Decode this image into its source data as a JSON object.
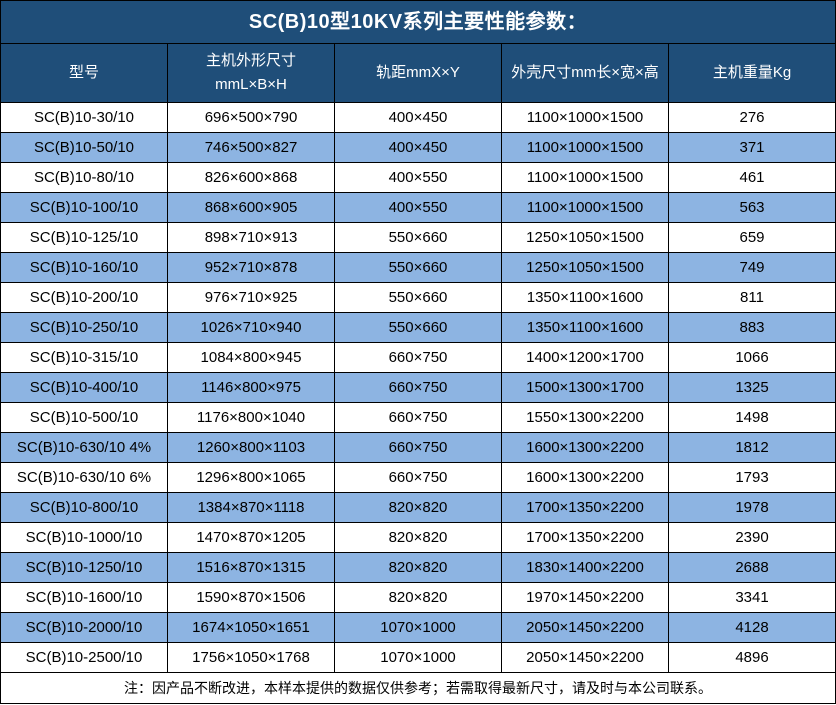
{
  "title": "SC(B)10型10KV系列主要性能参数：",
  "colors": {
    "header_bg": "#1F4E79",
    "stripe_bg": "#8DB4E2",
    "row_bg": "#FFFFFF",
    "border": "#000000",
    "header_text": "#FFFFFF",
    "body_text": "#000000"
  },
  "table": {
    "columns": [
      "型号",
      "主机外形尺寸\nmmL×B×H",
      "轨距mmX×Y",
      "外壳尺寸mm长×宽×高",
      "主机重量Kg"
    ],
    "rows": [
      [
        "SC(B)10-30/10",
        "696×500×790",
        "400×450",
        "1100×1000×1500",
        "276"
      ],
      [
        "SC(B)10-50/10",
        "746×500×827",
        "400×450",
        "1100×1000×1500",
        "371"
      ],
      [
        "SC(B)10-80/10",
        "826×600×868",
        "400×550",
        "1100×1000×1500",
        "461"
      ],
      [
        "SC(B)10-100/10",
        "868×600×905",
        "400×550",
        "1100×1000×1500",
        "563"
      ],
      [
        "SC(B)10-125/10",
        "898×710×913",
        "550×660",
        "1250×1050×1500",
        "659"
      ],
      [
        "SC(B)10-160/10",
        "952×710×878",
        "550×660",
        "1250×1050×1500",
        "749"
      ],
      [
        "SC(B)10-200/10",
        "976×710×925",
        "550×660",
        "1350×1100×1600",
        "811"
      ],
      [
        "SC(B)10-250/10",
        "1026×710×940",
        "550×660",
        "1350×1100×1600",
        "883"
      ],
      [
        "SC(B)10-315/10",
        "1084×800×945",
        "660×750",
        "1400×1200×1700",
        "1066"
      ],
      [
        "SC(B)10-400/10",
        "1146×800×975",
        "660×750",
        "1500×1300×1700",
        "1325"
      ],
      [
        "SC(B)10-500/10",
        "1176×800×1040",
        "660×750",
        "1550×1300×2200",
        "1498"
      ],
      [
        "SC(B)10-630/10 4%",
        "1260×800×1103",
        "660×750",
        "1600×1300×2200",
        "1812"
      ],
      [
        "SC(B)10-630/10 6%",
        "1296×800×1065",
        "660×750",
        "1600×1300×2200",
        "1793"
      ],
      [
        "SC(B)10-800/10",
        "1384×870×1118",
        "820×820",
        "1700×1350×2200",
        "1978"
      ],
      [
        "SC(B)10-1000/10",
        "1470×870×1205",
        "820×820",
        "1700×1350×2200",
        "2390"
      ],
      [
        "SC(B)10-1250/10",
        "1516×870×1315",
        "820×820",
        "1830×1400×2200",
        "2688"
      ],
      [
        "SC(B)10-1600/10",
        "1590×870×1506",
        "820×820",
        "1970×1450×2200",
        "3341"
      ],
      [
        "SC(B)10-2000/10",
        "1674×1050×1651",
        "1070×1000",
        "2050×1450×2200",
        "4128"
      ],
      [
        "SC(B)10-2500/10",
        "1756×1050×1768",
        "1070×1000",
        "2050×1450×2200",
        "4896"
      ]
    ],
    "note": "注：因产品不断改进，本样本提供的数据仅供参考；若需取得最新尺寸，请及时与本公司联系。"
  }
}
